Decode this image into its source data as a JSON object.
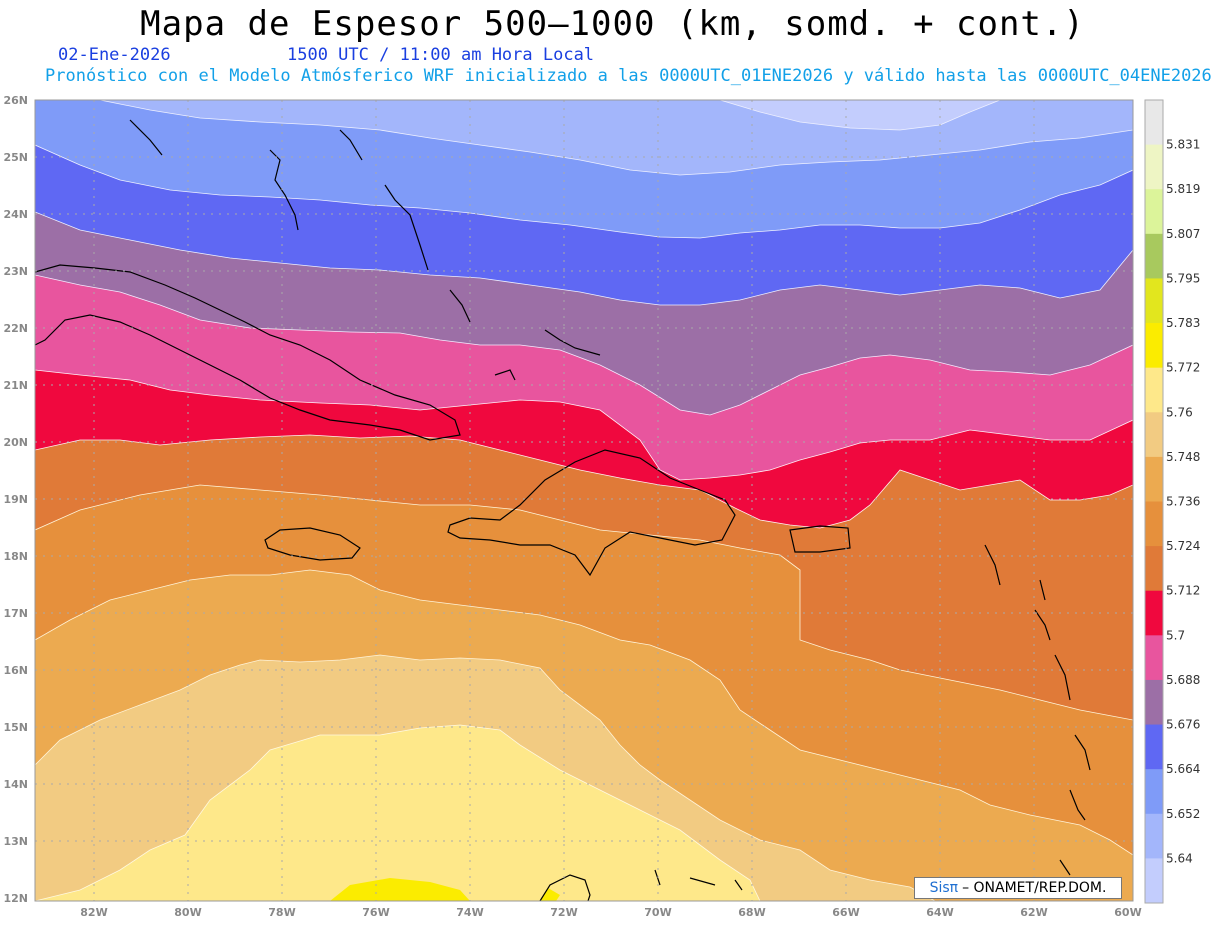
{
  "header": {
    "title": "Mapa de Espesor 500–1000 (km, somd. + cont.)",
    "date": "02-Ene-2026",
    "time": "1500 UTC / 11:00 am Hora Local",
    "info": "Pronóstico con el Modelo Atmósferico WRF inicializado a las 0000UTC_01ENE2026 y válido hasta las  0000UTC_04ENE2026"
  },
  "colors": {
    "date_text": "#1a3fe0",
    "info_text": "#12a0e8"
  },
  "map": {
    "lon_range": [
      -83,
      -60
    ],
    "lat_range": [
      12,
      26
    ],
    "x_ticks": [
      "82W",
      "80W",
      "78W",
      "76W",
      "74W",
      "72W",
      "70W",
      "68W",
      "66W",
      "64W",
      "62W",
      "60W"
    ],
    "y_ticks": [
      "26N",
      "25N",
      "24N",
      "23N",
      "22N",
      "21N",
      "20N",
      "19N",
      "18N",
      "17N",
      "16N",
      "15N",
      "14N",
      "13N",
      "12N"
    ]
  },
  "legend": {
    "labels": [
      "5.831",
      "5.819",
      "5.807",
      "5.795",
      "5.783",
      "5.772",
      "5.76",
      "5.748",
      "5.736",
      "5.724",
      "5.712",
      "5.7",
      "5.688",
      "5.676",
      "5.664",
      "5.652",
      "5.64"
    ],
    "colors": [
      "#e8e8e8",
      "#eef5c4",
      "#dcf49a",
      "#a8c95e",
      "#e2e61e",
      "#fbec00",
      "#fee88a",
      "#f2cb82",
      "#ecaa50",
      "#e6903c",
      "#e07a38",
      "#f0083e",
      "#e8559e",
      "#9c6fa6",
      "#5f68f3",
      "#7f9bf8",
      "#a3b6fb",
      "#c3cdfd"
    ]
  },
  "credit": {
    "brand": "Sisπ",
    "text": "– ONAMET/REP.DOM."
  }
}
